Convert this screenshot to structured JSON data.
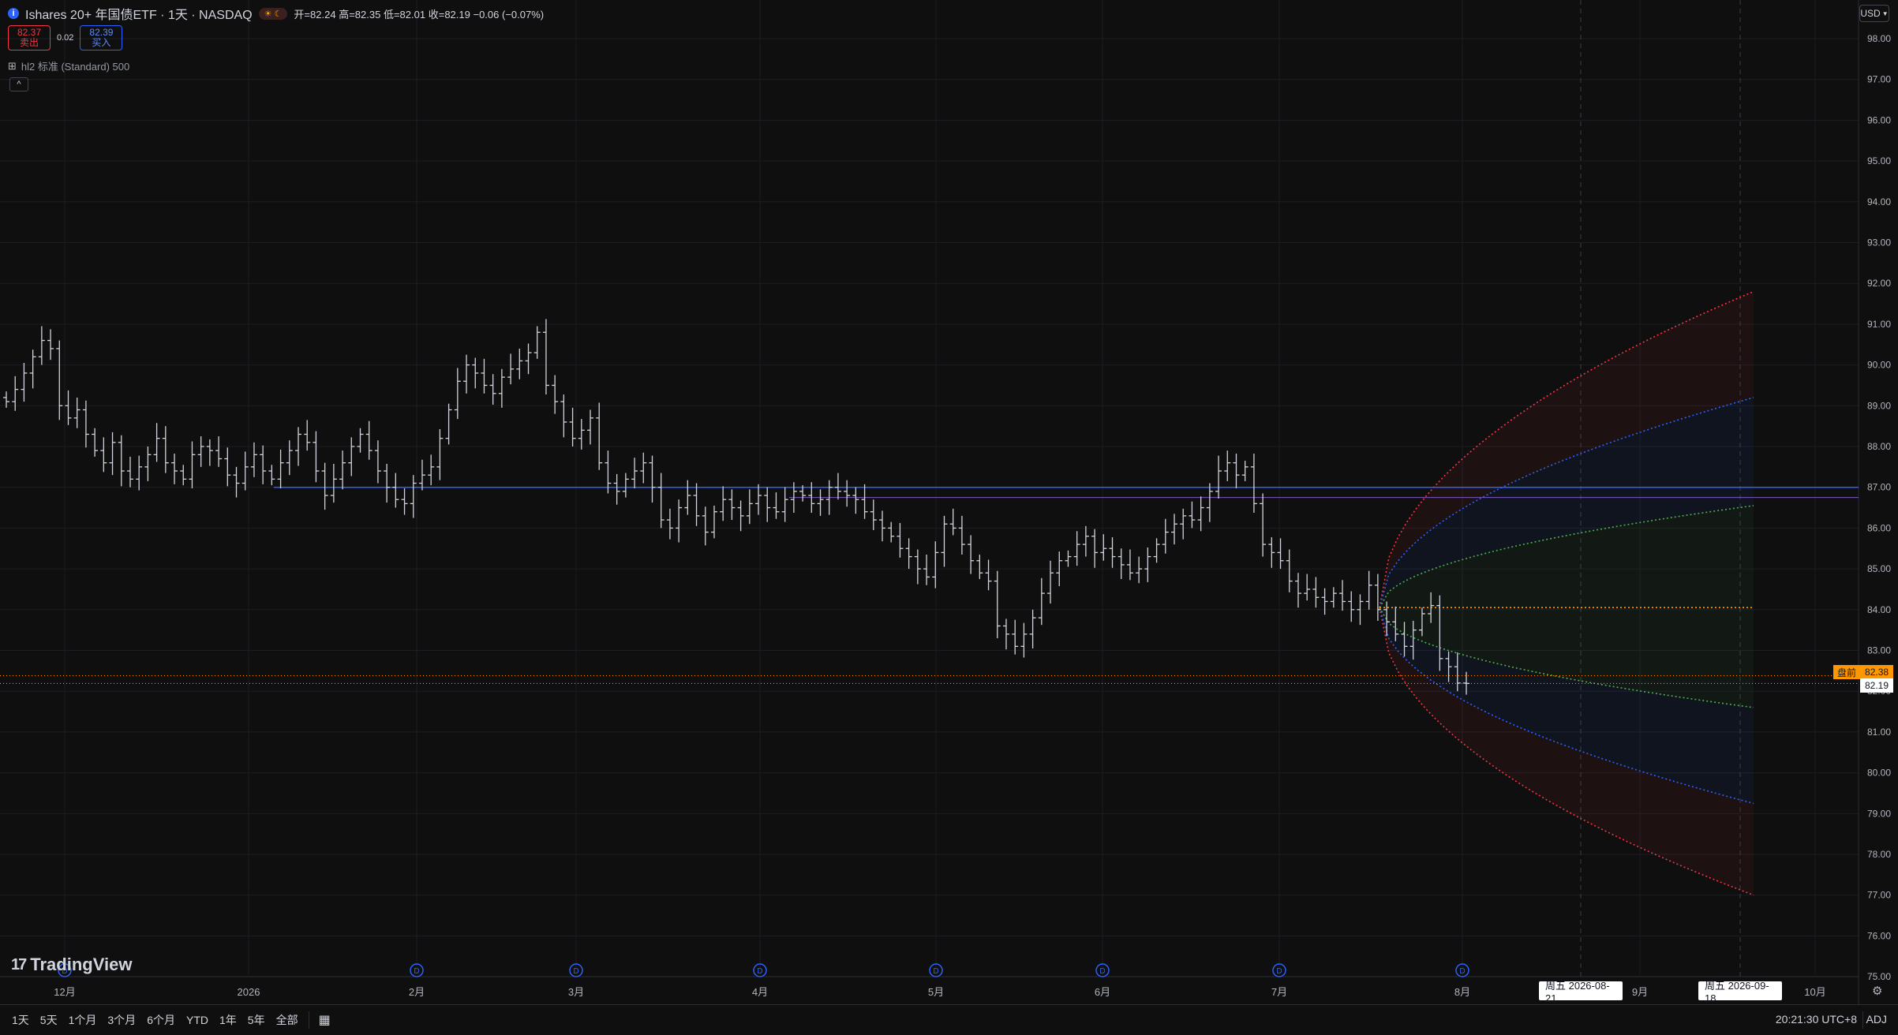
{
  "header": {
    "info_icon": "i",
    "title": "Ishares 20+ 年国债ETF · 1天 · NASDAQ",
    "market_badge": "☀ ☾",
    "open_label": "开=",
    "open": "82.24",
    "high_label": "高=",
    "high": "82.35",
    "low_label": "低=",
    "low": "82.01",
    "close_label": "收=",
    "close": "82.19",
    "change": "−0.06 (−0.07%)"
  },
  "trade": {
    "sell_price": "82.37",
    "sell_label": "卖出",
    "spread": "0.02",
    "buy_price": "82.39",
    "buy_label": "买入"
  },
  "indicator": {
    "icon": "⊞",
    "text": "hl2 标准 (Standard) 500"
  },
  "collapse_icon": "^",
  "currency": "USD",
  "logo": {
    "mark": "17",
    "text": "TradingView"
  },
  "bottom": {
    "ranges": [
      "1天",
      "5天",
      "1个月",
      "3个月",
      "6个月",
      "YTD",
      "1年",
      "5年",
      "全部"
    ],
    "calendar_icon": "calendar-icon",
    "clock": "20:21:30 UTC+8",
    "adj": "ADJ"
  },
  "colors": {
    "background": "#0f0f0f",
    "bar": "#d1d4dc",
    "hline": "#2962ff",
    "band_red": "#f23645",
    "band_blue": "#2962ff",
    "band_green": "#4caf50",
    "band_orange": "#ff9800"
  },
  "chart_data": {
    "type": "bar",
    "y_axis": {
      "min": 75,
      "max": 98,
      "ticks": [
        "98.00",
        "97.00",
        "96.00",
        "95.00",
        "94.00",
        "93.00",
        "92.00",
        "91.00",
        "90.00",
        "89.00",
        "88.00",
        "87.00",
        "86.00",
        "85.00",
        "84.00",
        "83.00",
        "82.00",
        "81.00",
        "80.00",
        "79.00",
        "78.00",
        "77.00",
        "76.00",
        "75.00"
      ]
    },
    "x_labels": [
      "12月",
      "2026",
      "2月",
      "3月",
      "4月",
      "5月",
      "6月",
      "7月",
      "8月",
      "9月",
      "10月"
    ],
    "dividend_marker": "D",
    "horizontal_level": 87.0,
    "secondary_level": 86.75,
    "last_price": 82.19,
    "current_price": 82.38,
    "current_label": "盘前",
    "forecast_center": 84.05,
    "forecast_bands": {
      "outer_upper_end": 91.8,
      "outer_lower_end": 77.0,
      "mid_upper_end": 89.2,
      "mid_lower_end": 79.25,
      "inner_upper_end": 86.55,
      "inner_lower_end": 81.6
    },
    "date_tags": [
      "周五 2026-08-21",
      "周五 2026-09-18"
    ],
    "closes": [
      89.1,
      89.4,
      89.8,
      90.2,
      90.6,
      90.4,
      89.0,
      88.7,
      88.9,
      88.3,
      87.9,
      87.6,
      88.1,
      87.4,
      87.2,
      87.5,
      87.8,
      88.2,
      87.6,
      87.4,
      87.2,
      87.8,
      88.0,
      87.9,
      87.7,
      87.3,
      87.1,
      87.5,
      87.8,
      87.4,
      87.2,
      87.6,
      87.9,
      88.3,
      88.1,
      87.4,
      86.8,
      87.2,
      87.6,
      88.0,
      88.3,
      87.9,
      87.4,
      87.0,
      86.7,
      86.6,
      87.1,
      87.3,
      87.5,
      88.2,
      88.9,
      89.6,
      90.0,
      89.8,
      89.5,
      89.3,
      89.7,
      89.9,
      90.1,
      90.3,
      90.8,
      89.5,
      89.1,
      88.6,
      88.2,
      88.4,
      88.7,
      87.6,
      87.1,
      86.9,
      87.2,
      87.4,
      87.6,
      87.0,
      86.2,
      86.0,
      86.5,
      86.8,
      86.3,
      85.9,
      86.4,
      86.7,
      86.5,
      86.3,
      86.6,
      86.8,
      86.5,
      86.4,
      86.7,
      86.9,
      86.8,
      86.6,
      86.7,
      87.0,
      86.9,
      86.8,
      86.7,
      86.4,
      86.2,
      86.0,
      85.8,
      85.5,
      85.3,
      85.0,
      84.8,
      85.4,
      86.1,
      86.0,
      85.6,
      85.2,
      84.9,
      84.7,
      83.6,
      83.4,
      83.1,
      83.4,
      83.8,
      84.4,
      84.9,
      85.2,
      85.3,
      85.6,
      85.8,
      85.4,
      85.5,
      85.3,
      85.1,
      84.9,
      85.0,
      85.3,
      85.6,
      85.9,
      86.1,
      86.3,
      86.2,
      86.5,
      86.9,
      87.4,
      87.6,
      87.3,
      87.5,
      86.6,
      85.6,
      85.4,
      85.2,
      84.7,
      84.4,
      84.5,
      84.3,
      84.2,
      84.4,
      84.2,
      84.0,
      84.2,
      84.6,
      84.0,
      83.7,
      83.4,
      83.1,
      83.5,
      83.9,
      84.1,
      82.8,
      82.6,
      82.2,
      82.19
    ]
  }
}
